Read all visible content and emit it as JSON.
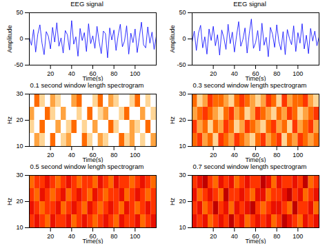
{
  "chart_data": [
    {
      "type": "line",
      "title": "EEG signal",
      "xlabel": "Time(s)",
      "ylabel": "Amplitude",
      "color": "#0000ff",
      "x": [
        0,
        2,
        4,
        6,
        8,
        10,
        12,
        14,
        16,
        18,
        20,
        22,
        24,
        26,
        28,
        30,
        32,
        34,
        36,
        38,
        40,
        42,
        44,
        46,
        48,
        50,
        52,
        54,
        56,
        58,
        60,
        62,
        64,
        66,
        68,
        70,
        72,
        74,
        76,
        78,
        80,
        82,
        84,
        86,
        88,
        90,
        92,
        94,
        96,
        98,
        100,
        102,
        104,
        106,
        108,
        110,
        112,
        114,
        116,
        118,
        120
      ],
      "values": [
        3,
        -12,
        18,
        -25,
        9,
        27,
        -8,
        -30,
        14,
        5,
        -19,
        22,
        -6,
        31,
        -14,
        2,
        -27,
        16,
        8,
        -21,
        35,
        -10,
        4,
        -33,
        20,
        -3,
        12,
        -24,
        29,
        -9,
        6,
        -18,
        24,
        -5,
        -28,
        15,
        10,
        -36,
        21,
        -2,
        17,
        -22,
        7,
        28,
        -15,
        -4,
        25,
        -29,
        11,
        -7,
        19,
        -26,
        3,
        32,
        -11,
        -17,
        23,
        -8,
        13,
        -20,
        5
      ],
      "xlim": [
        0,
        120
      ],
      "xticks": [
        20,
        40,
        60,
        80,
        100
      ],
      "ylim": [
        -50,
        50
      ],
      "yticks": [
        -50,
        0,
        50
      ]
    },
    {
      "type": "line",
      "title": "EEG signal",
      "xlabel": "Time(s)",
      "ylabel": "Amplitude",
      "color": "#0000ff",
      "x": [
        0,
        2,
        4,
        6,
        8,
        10,
        12,
        14,
        16,
        18,
        20,
        22,
        24,
        26,
        28,
        30,
        32,
        34,
        36,
        38,
        40,
        42,
        44,
        46,
        48,
        50,
        52,
        54,
        56,
        58,
        60,
        62,
        64,
        66,
        68,
        70,
        72,
        74,
        76,
        78,
        80,
        82,
        84,
        86,
        88,
        90,
        92,
        94,
        96,
        98,
        100,
        102,
        104,
        106,
        108,
        110,
        112,
        114,
        116,
        118,
        120
      ],
      "values": [
        -6,
        15,
        -22,
        11,
        26,
        -17,
        4,
        -29,
        19,
        -3,
        24,
        -13,
        8,
        -31,
        17,
        2,
        -20,
        28,
        -9,
        13,
        -25,
        6,
        33,
        -14,
        -1,
        21,
        -27,
        10,
        38,
        -18,
        -7,
        16,
        -23,
        30,
        -12,
        3,
        -34,
        22,
        9,
        -16,
        27,
        -5,
        -21,
        14,
        -30,
        18,
        1,
        -11,
        25,
        -24,
        12,
        -8,
        29,
        -19,
        7,
        -28,
        20,
        -4,
        15,
        -13,
        4
      ],
      "xlim": [
        0,
        120
      ],
      "xticks": [
        20,
        40,
        60,
        80,
        100
      ],
      "ylim": [
        -50,
        50
      ],
      "yticks": [
        -50,
        0,
        50
      ]
    },
    {
      "type": "heatmap",
      "title": "0.1 second window length spectrogram",
      "xlabel": "Time(s)",
      "ylabel": "Hz",
      "x": [
        0,
        5,
        10,
        15,
        20,
        25,
        30,
        35,
        40,
        45,
        50,
        55,
        60,
        65,
        70,
        75,
        80,
        85,
        90,
        95,
        100,
        105,
        110,
        115,
        120
      ],
      "y": [
        10,
        15,
        20,
        25,
        30
      ],
      "value_range": [
        0,
        9
      ],
      "values": [
        [
          9,
          7,
          8,
          9,
          6,
          9,
          8,
          7,
          9,
          9,
          6,
          8,
          9,
          7,
          8,
          9,
          9,
          6,
          8,
          7,
          9,
          8,
          9,
          7
        ],
        [
          8,
          9,
          6,
          9,
          9,
          7,
          9,
          8,
          6,
          9,
          8,
          9,
          7,
          9,
          9,
          6,
          8,
          9,
          9,
          7,
          8,
          9,
          6,
          9
        ],
        [
          7,
          9,
          9,
          6,
          8,
          9,
          7,
          9,
          9,
          8,
          9,
          6,
          9,
          8,
          7,
          9,
          9,
          8,
          6,
          9,
          9,
          7,
          9,
          8
        ],
        [
          9,
          6,
          8,
          9,
          7,
          8,
          9,
          9,
          7,
          6,
          9,
          9,
          8,
          6,
          9,
          7,
          8,
          9,
          9,
          8,
          6,
          9,
          8,
          9
        ]
      ],
      "xlim": [
        0,
        120
      ],
      "xticks": [
        20,
        40,
        60,
        80,
        100
      ],
      "ylim": [
        10,
        30
      ],
      "yticks": [
        10,
        20,
        30
      ]
    },
    {
      "type": "heatmap",
      "title": "0.3 second window length spectrogram",
      "xlabel": "Time(s)",
      "ylabel": "Hz",
      "x": [
        0,
        5,
        10,
        15,
        20,
        25,
        30,
        35,
        40,
        45,
        50,
        55,
        60,
        65,
        70,
        75,
        80,
        85,
        90,
        95,
        100,
        105,
        110,
        115,
        120
      ],
      "y": [
        10,
        15,
        20,
        25,
        30
      ],
      "value_range": [
        0,
        9
      ],
      "values": [
        [
          6,
          5,
          7,
          6,
          8,
          5,
          6,
          7,
          5,
          6,
          7,
          8,
          6,
          5,
          7,
          6,
          5,
          8,
          6,
          7,
          5,
          6,
          7,
          6
        ],
        [
          5,
          7,
          6,
          8,
          6,
          7,
          5,
          6,
          8,
          7,
          5,
          6,
          7,
          8,
          6,
          5,
          7,
          6,
          8,
          5,
          7,
          6,
          5,
          7
        ],
        [
          7,
          6,
          5,
          6,
          7,
          8,
          6,
          5,
          7,
          6,
          8,
          7,
          5,
          6,
          7,
          8,
          6,
          7,
          5,
          6,
          8,
          7,
          6,
          5
        ],
        [
          6,
          8,
          7,
          5,
          6,
          6,
          7,
          8,
          6,
          5,
          6,
          7,
          8,
          7,
          5,
          6,
          8,
          5,
          7,
          6,
          6,
          5,
          7,
          8
        ]
      ],
      "xlim": [
        0,
        120
      ],
      "xticks": [
        20,
        40,
        60,
        80,
        100
      ],
      "ylim": [
        10,
        30
      ],
      "yticks": [
        10,
        20,
        30
      ]
    },
    {
      "type": "heatmap",
      "title": "0.5 second window length spectrogram",
      "xlabel": "Time(s)",
      "ylabel": "Hz",
      "x": [
        0,
        5,
        10,
        15,
        20,
        25,
        30,
        35,
        40,
        45,
        50,
        55,
        60,
        65,
        70,
        75,
        80,
        85,
        90,
        95,
        100,
        105,
        110,
        115,
        120
      ],
      "y": [
        10,
        15,
        20,
        25,
        30
      ],
      "value_range": [
        0,
        9
      ],
      "values": [
        [
          5,
          4,
          5,
          6,
          4,
          5,
          5,
          4,
          6,
          5,
          4,
          5,
          6,
          5,
          4,
          5,
          6,
          4,
          5,
          5,
          4,
          6,
          5,
          4
        ],
        [
          4,
          5,
          6,
          5,
          5,
          4,
          6,
          5,
          4,
          5,
          6,
          4,
          5,
          6,
          5,
          4,
          5,
          6,
          4,
          5,
          6,
          5,
          4,
          5
        ],
        [
          5,
          6,
          4,
          5,
          6,
          5,
          4,
          6,
          5,
          4,
          5,
          6,
          4,
          5,
          6,
          5,
          5,
          4,
          6,
          5,
          4,
          5,
          6,
          5
        ],
        [
          6,
          5,
          5,
          4,
          5,
          6,
          5,
          4,
          5,
          6,
          5,
          5,
          6,
          4,
          5,
          6,
          4,
          5,
          5,
          6,
          5,
          4,
          5,
          6
        ]
      ],
      "xlim": [
        0,
        120
      ],
      "xticks": [
        20,
        40,
        60,
        80,
        100
      ],
      "ylim": [
        10,
        30
      ],
      "yticks": [
        10,
        20,
        30
      ]
    },
    {
      "type": "heatmap",
      "title": "0.7 second window length spectrogram",
      "xlabel": "Time(s)",
      "ylabel": "Hz",
      "x": [
        0,
        5,
        10,
        15,
        20,
        25,
        30,
        35,
        40,
        45,
        50,
        55,
        60,
        65,
        70,
        75,
        80,
        85,
        90,
        95,
        100,
        105,
        110,
        115,
        120
      ],
      "y": [
        10,
        15,
        20,
        25,
        30
      ],
      "value_range": [
        0,
        9
      ],
      "values": [
        [
          4,
          5,
          4,
          6,
          5,
          4,
          5,
          3,
          5,
          4,
          6,
          5,
          4,
          5,
          4,
          6,
          5,
          3,
          4,
          5,
          6,
          4,
          5,
          4
        ],
        [
          5,
          4,
          6,
          5,
          3,
          5,
          4,
          6,
          4,
          5,
          4,
          3,
          5,
          6,
          5,
          4,
          4,
          5,
          6,
          3,
          5,
          5,
          4,
          6
        ],
        [
          4,
          6,
          5,
          4,
          5,
          6,
          3,
          5,
          5,
          4,
          5,
          6,
          4,
          4,
          6,
          5,
          5,
          4,
          3,
          5,
          4,
          6,
          5,
          4
        ],
        [
          5,
          4,
          3,
          5,
          6,
          4,
          5,
          4,
          6,
          5,
          4,
          5,
          5,
          3,
          4,
          6,
          4,
          5,
          5,
          4,
          5,
          3,
          6,
          5
        ]
      ],
      "xlim": [
        0,
        120
      ],
      "xticks": [
        20,
        40,
        60,
        80,
        100
      ],
      "ylim": [
        10,
        30
      ],
      "yticks": [
        10,
        20,
        30
      ]
    }
  ]
}
